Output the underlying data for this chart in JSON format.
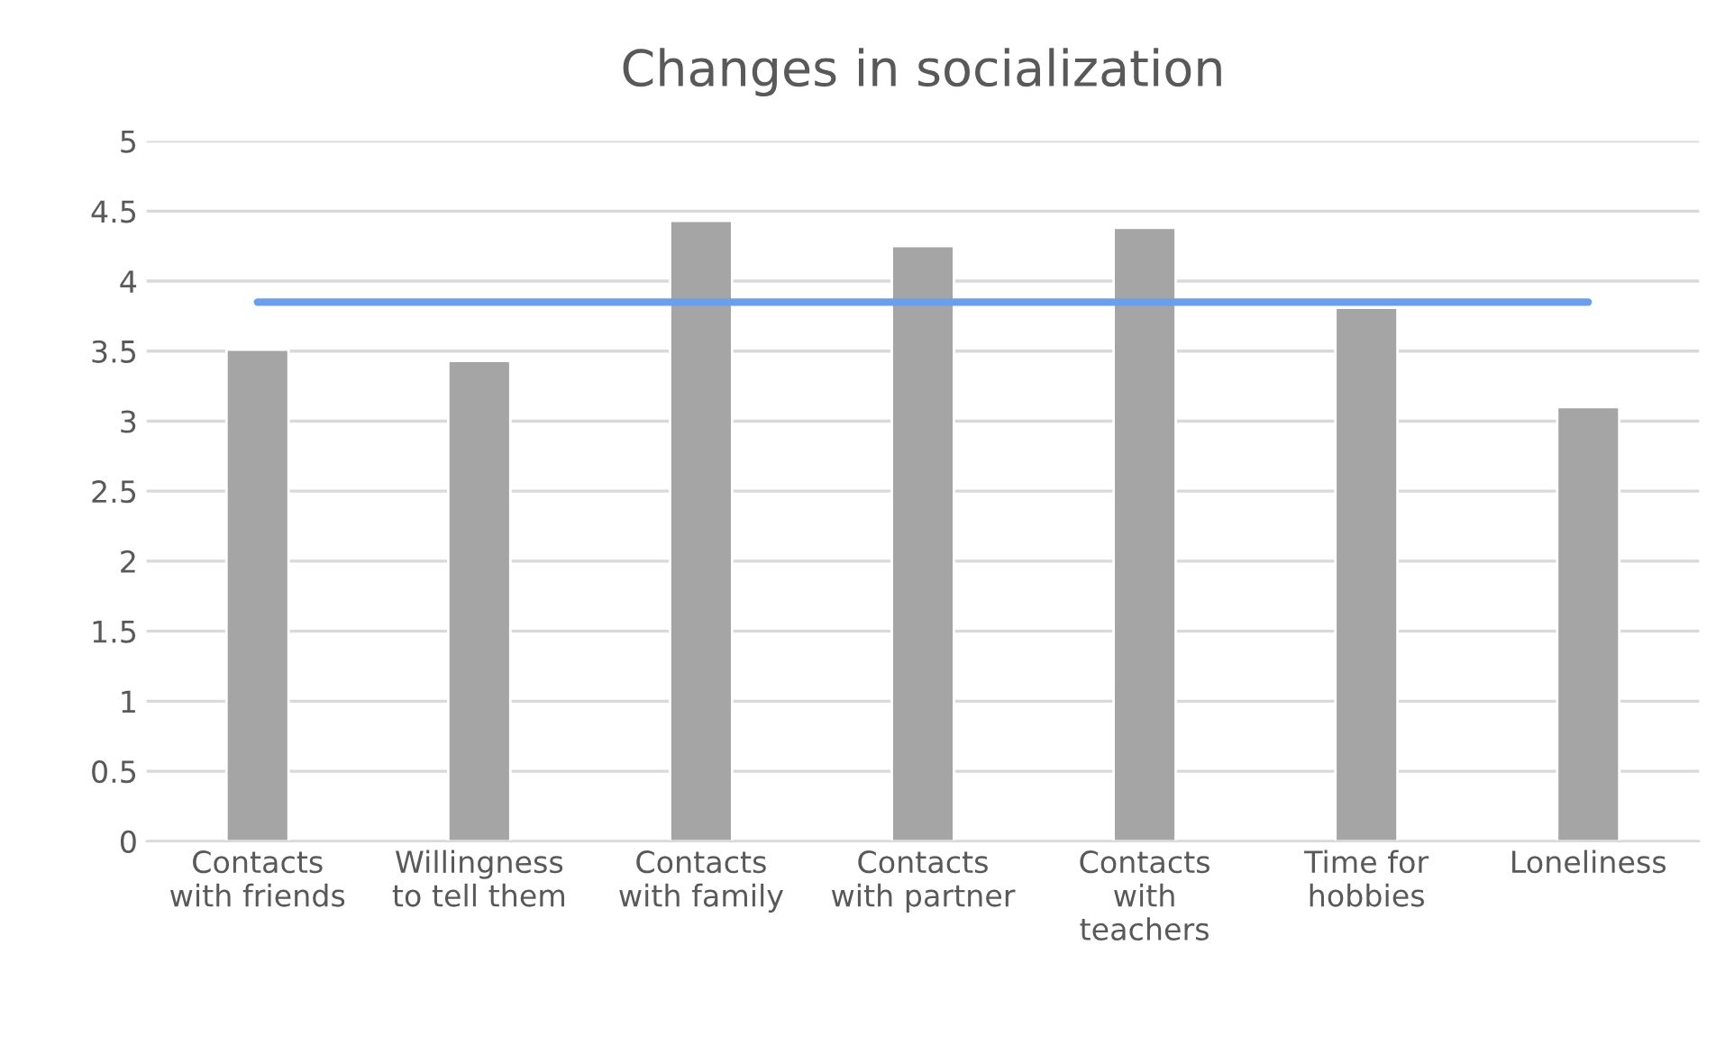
{
  "chart_data": {
    "type": "bar",
    "title": "Changes in socialization",
    "categories": [
      "Contacts\nwith friends",
      "Willingness\nto tell them",
      "Contacts\nwith family",
      "Contacts\nwith partner",
      "Contacts\nwith\nteachers",
      "Time for\nhobbies",
      "Loneliness"
    ],
    "series": [
      {
        "color": "#a5a5a5",
        "values": [
          3.51,
          3.43,
          4.43,
          4.25,
          4.38,
          3.81,
          3.1
        ]
      },
      {
        "type": "line",
        "color": "#6d9eeb",
        "values": [
          3.85,
          3.85,
          3.85,
          3.85,
          3.85,
          3.85,
          3.85
        ]
      }
    ],
    "ylim": [
      0,
      5
    ],
    "yticks": [
      0,
      0.5,
      1,
      1.5,
      2,
      2.5,
      3,
      3.5,
      4,
      4.5,
      5
    ],
    "grid": "y",
    "legend": false
  }
}
